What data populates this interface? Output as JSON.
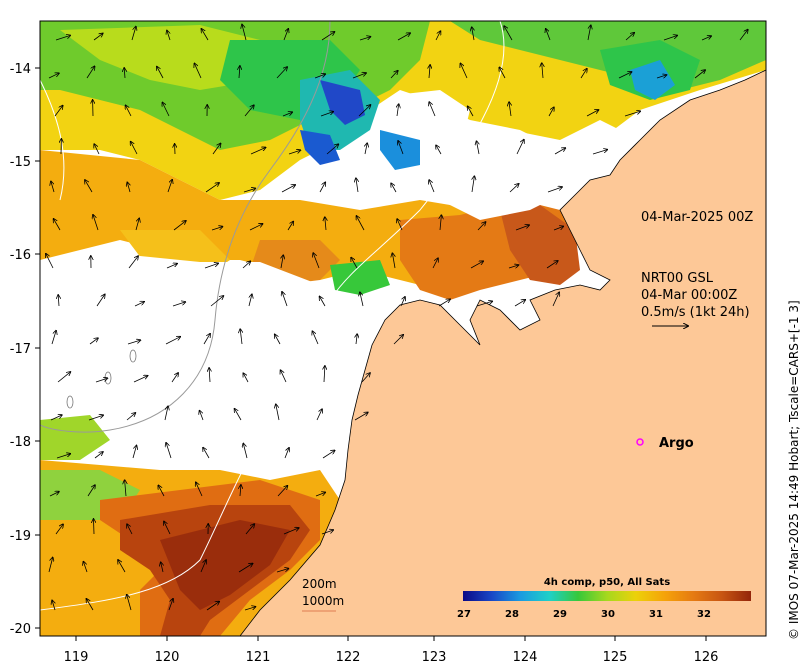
{
  "map": {
    "lon_ticks": [
      "119",
      "120",
      "121",
      "122",
      "123",
      "124",
      "125",
      "126"
    ],
    "lat_ticks": [
      "-14",
      "-15",
      "-16",
      "-17",
      "-18",
      "-19",
      "-20"
    ],
    "analysis_time_label": "04-Mar-2025 00Z",
    "current_block": {
      "line1": "NRT00 GSL",
      "line2": "04-Mar 00:00Z",
      "line3": "0.5m/s (1kt 24h)"
    },
    "argo_label": "Argo",
    "contour_labels": {
      "shallow": "200m",
      "deep": "1000m"
    },
    "credit": "© IMOS 07-Mar-2025 14:49 Hobart; Tscale=CARS+[-1 3]"
  },
  "colorbar": {
    "title": "4h comp, p50, All Sats",
    "ticks": [
      "27",
      "28",
      "29",
      "30",
      "31",
      "32"
    ]
  },
  "colors": {
    "land": "#fdc897",
    "argo_marker": "#ff00ff",
    "colormap": [
      "#0a0a86",
      "#1947c6",
      "#1b9be0",
      "#1fd0c8",
      "#37c83a",
      "#a6d81e",
      "#ecd10a",
      "#f5a30a",
      "#e57a12",
      "#c75512",
      "#93250a"
    ]
  }
}
